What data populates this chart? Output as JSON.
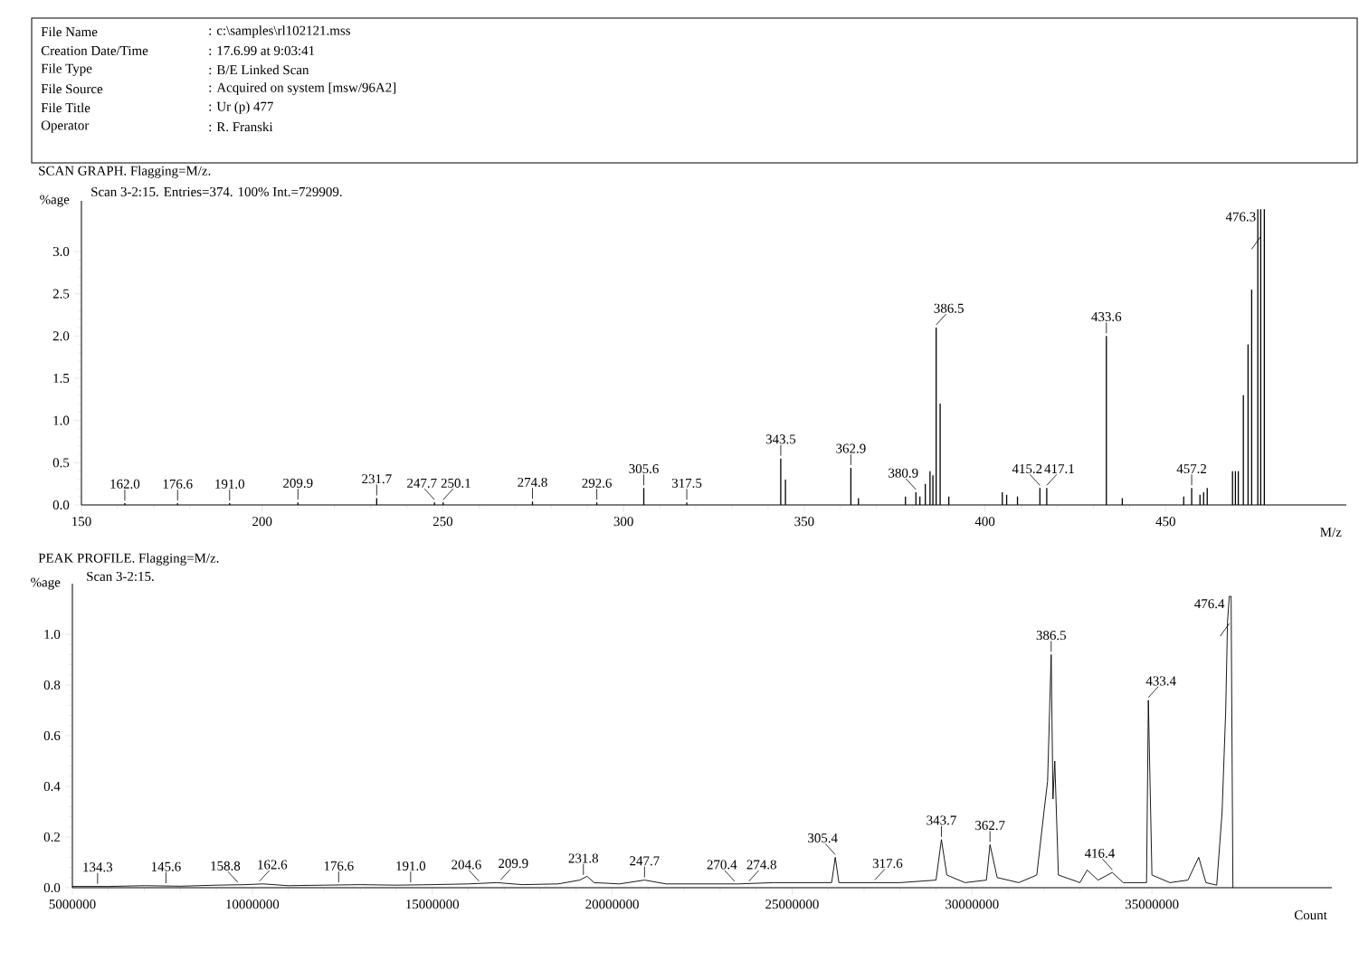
{
  "chart_data": [
    {
      "type": "other",
      "annotations": [
        "File Name",
        ": c:\\samples\\rl102121.mss",
        "Creation Date/Time",
        ": 17.6.99 at 9:03:41",
        "File Type",
        ": B/E Linked Scan",
        "File Source",
        ": Acquired on system [msw/96A2]",
        "File Title",
        ": Ur (p)    477",
        "Operator",
        ": R. Franski"
      ]
    },
    {
      "type": "bar",
      "title": "SCAN GRAPH. Flagging=M/z.",
      "subtitle": "Scan 3-2:15. Entries=374. 100% Int.=729909.",
      "xlabel": "M/z",
      "ylabel": "%age",
      "color": "#000000",
      "x": [
        162.0,
        176.6,
        191.0,
        209.9,
        231.7,
        247.7,
        250.1,
        274.8,
        292.6,
        305.6,
        317.5,
        343.5,
        344.8,
        362.9,
        365.0,
        378.0,
        380.9,
        382.0,
        383.5,
        384.8,
        385.6,
        386.5,
        387.6,
        390.0,
        404.8,
        406.0,
        409.0,
        415.2,
        417.1,
        433.6,
        438.0,
        455.0,
        457.2,
        459.5,
        460.5,
        461.5,
        468.5,
        469.3,
        470.1,
        471.5,
        472.8,
        473.8,
        475.5,
        476.3,
        477.3
      ],
      "values": [
        0.02,
        0.02,
        0.02,
        0.03,
        0.08,
        0.03,
        0.03,
        0.04,
        0.03,
        0.2,
        0.03,
        0.55,
        0.3,
        0.44,
        0.08,
        0.1,
        0.15,
        0.1,
        0.25,
        0.4,
        0.35,
        2.1,
        1.2,
        0.1,
        0.15,
        0.12,
        0.1,
        0.2,
        0.2,
        2.0,
        0.08,
        0.1,
        0.2,
        0.12,
        0.15,
        0.2,
        0.4,
        0.4,
        0.4,
        1.3,
        1.9,
        2.55,
        3.5,
        3.5,
        3.5
      ],
      "xlim": [
        150,
        500
      ],
      "xticks": [
        150,
        200,
        250,
        300,
        350,
        400,
        450
      ],
      "ylim": [
        0,
        3.6
      ],
      "yticks": [
        {
          "value": 0,
          "label": "0.0"
        },
        {
          "value": 0.5,
          "label": "0.5"
        },
        {
          "value": 1,
          "label": "1.0"
        },
        {
          "value": 1.5,
          "label": "1.5"
        },
        {
          "value": 2,
          "label": "2.0"
        },
        {
          "value": 2.5,
          "label": "2.5"
        },
        {
          "value": 3,
          "label": "3.0"
        }
      ],
      "annotations": [
        {
          "text": "162.0",
          "x": 162.0,
          "y": 0.02
        },
        {
          "text": "176.6",
          "x": 176.6,
          "y": 0.02
        },
        {
          "text": "191.0",
          "x": 191.0,
          "y": 0.02
        },
        {
          "text": "209.9",
          "x": 209.9,
          "y": 0.03
        },
        {
          "text": "231.7",
          "x": 231.7,
          "y": 0.08
        },
        {
          "text": "247.7",
          "x": 247.7,
          "y": 0.03
        },
        {
          "text": "250.1",
          "x": 250.1,
          "y": 0.03
        },
        {
          "text": "274.8",
          "x": 274.8,
          "y": 0.04
        },
        {
          "text": "292.6",
          "x": 292.6,
          "y": 0.03
        },
        {
          "text": "305.6",
          "x": 305.6,
          "y": 0.2
        },
        {
          "text": "317.5",
          "x": 317.5,
          "y": 0.03
        },
        {
          "text": "343.5",
          "x": 343.5,
          "y": 0.55
        },
        {
          "text": "362.9",
          "x": 362.9,
          "y": 0.44
        },
        {
          "text": "380.9",
          "x": 380.9,
          "y": 0.15
        },
        {
          "text": "386.5",
          "x": 386.5,
          "y": 2.1
        },
        {
          "text": "415.2",
          "x": 415.2,
          "y": 0.2
        },
        {
          "text": "417.1",
          "x": 417.1,
          "y": 0.2
        },
        {
          "text": "433.6",
          "x": 433.6,
          "y": 2.0
        },
        {
          "text": "457.2",
          "x": 457.2,
          "y": 0.2
        },
        {
          "text": "476.3",
          "x": 476.3,
          "y": 3.5
        }
      ]
    },
    {
      "type": "line",
      "title": "PEAK PROFILE. Flagging=M/z.",
      "subtitle": "Scan 3-2:15.",
      "xlabel": "Count",
      "ylabel": "%age",
      "color": "#000000",
      "x": [
        5000000,
        6000000,
        7000000,
        8000000,
        9000000,
        9800000,
        10300000,
        11000000,
        12000000,
        13000000,
        14000000,
        15000000,
        16000000,
        16800000,
        17500000,
        18500000,
        19100000,
        19300000,
        19500000,
        20200000,
        20900000,
        21500000,
        22500000,
        23500000,
        24500000,
        25500000,
        26100000,
        26200000,
        26300000,
        27000000,
        28000000,
        29000000,
        29150000,
        29300000,
        29800000,
        30400000,
        30500000,
        30700000,
        31300000,
        31800000,
        32000000,
        32100000,
        32200000,
        32250000,
        32300000,
        32400000,
        33000000,
        33200000,
        33500000,
        33900000,
        34200000,
        34850000,
        34900000,
        35000000,
        35500000,
        36000000,
        36300000,
        36500000,
        36800000,
        36950000,
        37050000,
        37100000,
        37150000,
        37200000,
        37250000
      ],
      "values": [
        0.005,
        0.005,
        0.008,
        0.006,
        0.01,
        0.012,
        0.015,
        0.008,
        0.01,
        0.012,
        0.01,
        0.012,
        0.015,
        0.02,
        0.012,
        0.015,
        0.03,
        0.045,
        0.02,
        0.015,
        0.03,
        0.015,
        0.015,
        0.015,
        0.02,
        0.02,
        0.02,
        0.12,
        0.02,
        0.02,
        0.02,
        0.03,
        0.19,
        0.05,
        0.02,
        0.03,
        0.17,
        0.04,
        0.02,
        0.05,
        0.3,
        0.42,
        0.92,
        0.35,
        0.5,
        0.05,
        0.02,
        0.07,
        0.03,
        0.06,
        0.02,
        0.02,
        0.74,
        0.05,
        0.02,
        0.03,
        0.12,
        0.02,
        0.01,
        0.3,
        0.7,
        1.05,
        1.15,
        1.15,
        0.0
      ],
      "xlim": [
        5000000,
        40000000
      ],
      "xticks": [
        5000000,
        10000000,
        15000000,
        20000000,
        25000000,
        30000000,
        35000000
      ],
      "ylim": [
        0,
        1.2
      ],
      "yticks": [
        {
          "value": 0,
          "label": "0.0"
        },
        {
          "value": 0.2,
          "label": "0.2"
        },
        {
          "value": 0.4,
          "label": "0.4"
        },
        {
          "value": 0.6,
          "label": "0.6"
        },
        {
          "value": 0.8,
          "label": "0.8"
        },
        {
          "value": 1,
          "label": "1.0"
        }
      ],
      "annotations": [
        {
          "text": "134.3",
          "x": 5700000,
          "y": 0.005
        },
        {
          "text": "145.6",
          "x": 7600000,
          "y": 0.007
        },
        {
          "text": "158.8",
          "x": 9600000,
          "y": 0.01
        },
        {
          "text": "162.6",
          "x": 10200000,
          "y": 0.015
        },
        {
          "text": "176.6",
          "x": 12400000,
          "y": 0.01
        },
        {
          "text": "191.0",
          "x": 14400000,
          "y": 0.01
        },
        {
          "text": "204.6",
          "x": 16300000,
          "y": 0.015
        },
        {
          "text": "209.9",
          "x": 16900000,
          "y": 0.02
        },
        {
          "text": "231.8",
          "x": 19200000,
          "y": 0.04
        },
        {
          "text": "247.7",
          "x": 20900000,
          "y": 0.03
        },
        {
          "text": "270.4",
          "x": 23400000,
          "y": 0.015
        },
        {
          "text": "274.8",
          "x": 23800000,
          "y": 0.015
        },
        {
          "text": "305.4",
          "x": 26200000,
          "y": 0.12
        },
        {
          "text": "317.6",
          "x": 27300000,
          "y": 0.02
        },
        {
          "text": "343.7",
          "x": 29150000,
          "y": 0.19
        },
        {
          "text": "362.7",
          "x": 30500000,
          "y": 0.17
        },
        {
          "text": "386.5",
          "x": 32200000,
          "y": 0.92
        },
        {
          "text": "416.4",
          "x": 33900000,
          "y": 0.06
        },
        {
          "text": "433.4",
          "x": 34900000,
          "y": 0.74
        },
        {
          "text": "476.4",
          "x": 37150000,
          "y": 1.15
        }
      ]
    }
  ]
}
